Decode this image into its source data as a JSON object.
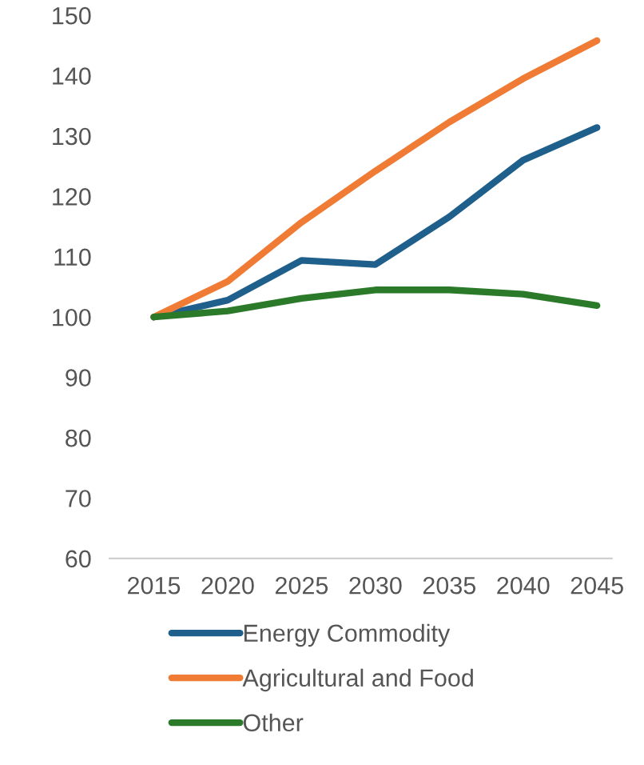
{
  "chart_data": {
    "type": "line",
    "x": [
      2015,
      2020,
      2025,
      2030,
      2035,
      2040,
      2045
    ],
    "series": [
      {
        "name": "Energy Commodity",
        "color": "#1f5f8b",
        "values": [
          100,
          102.8,
          109.4,
          108.7,
          116.6,
          126,
          131.4
        ]
      },
      {
        "name": "Agricultural and Food",
        "color": "#f07b35",
        "values": [
          100,
          105.9,
          115.7,
          124.2,
          132.3,
          139.5,
          145.8
        ]
      },
      {
        "name": "Other",
        "color": "#2a7a2a",
        "values": [
          100,
          101,
          103.1,
          104.5,
          104.5,
          103.8,
          101.9
        ]
      }
    ],
    "xlim": [
      2012,
      2046
    ],
    "xticks": [
      2015,
      2020,
      2025,
      2030,
      2035,
      2040,
      2045
    ],
    "ylim": [
      60,
      150
    ],
    "yticks": [
      60,
      70,
      80,
      90,
      100,
      110,
      120,
      130,
      140,
      150
    ],
    "grid": false,
    "legend": "bottom",
    "marker": "none",
    "line_style": "solid"
  }
}
